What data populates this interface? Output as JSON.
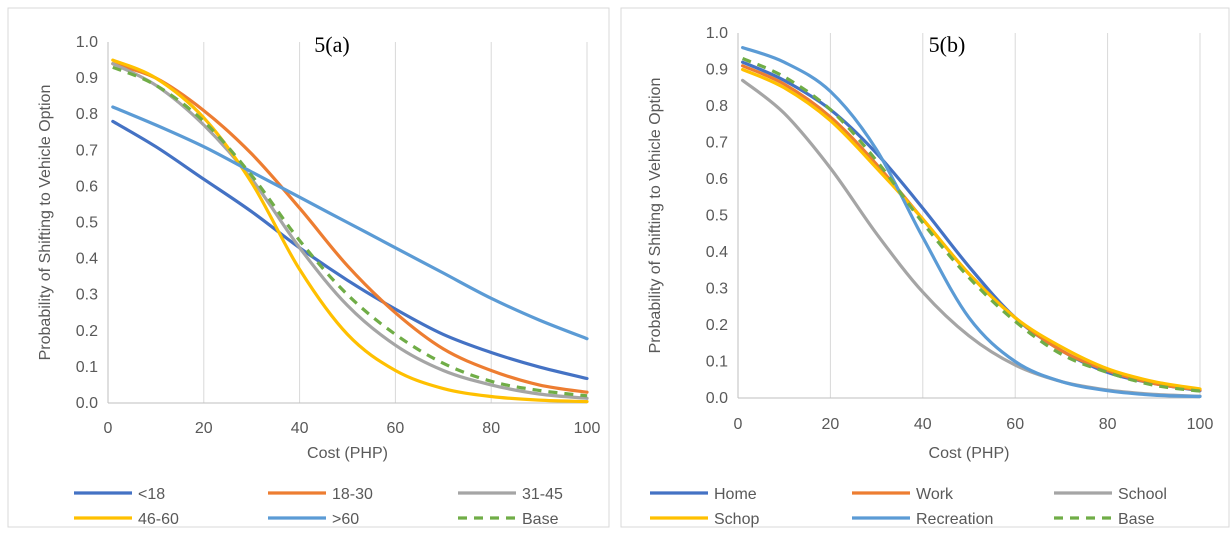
{
  "chart_data": [
    {
      "type": "line",
      "title": "5(a)",
      "xlabel": "Cost (PHP)",
      "ylabel": "Probability of Shifting to Vehicle Option",
      "xlim": [
        0,
        100
      ],
      "ylim": [
        0,
        1.0
      ],
      "xticks": [
        "0",
        "20",
        "40",
        "60",
        "80",
        "100"
      ],
      "yticks": [
        "0.0",
        "0.1",
        "0.2",
        "0.3",
        "0.4",
        "0.5",
        "0.6",
        "0.7",
        "0.8",
        "0.9",
        "1.0"
      ],
      "grid": "vertical",
      "legend": "bottom",
      "x": [
        1,
        10,
        20,
        30,
        40,
        50,
        60,
        70,
        80,
        90,
        100
      ],
      "series": [
        {
          "name": "<18",
          "color": "#4472C4",
          "dash": false,
          "values": [
            0.78,
            0.71,
            0.62,
            0.53,
            0.43,
            0.34,
            0.26,
            0.19,
            0.14,
            0.1,
            0.068
          ]
        },
        {
          "name": "18-30",
          "color": "#ED7D31",
          "dash": false,
          "values": [
            0.94,
            0.9,
            0.81,
            0.69,
            0.54,
            0.38,
            0.25,
            0.15,
            0.09,
            0.05,
            0.03
          ]
        },
        {
          "name": "31-45",
          "color": "#A5A5A5",
          "dash": false,
          "values": [
            0.94,
            0.88,
            0.77,
            0.62,
            0.43,
            0.27,
            0.16,
            0.09,
            0.05,
            0.025,
            0.013
          ]
        },
        {
          "name": "46-60",
          "color": "#FFC000",
          "dash": false,
          "values": [
            0.95,
            0.9,
            0.79,
            0.61,
            0.37,
            0.19,
            0.09,
            0.04,
            0.018,
            0.008,
            0.004
          ]
        },
        {
          "name": ">60",
          "color": "#5B9BD5",
          "dash": false,
          "values": [
            0.82,
            0.77,
            0.71,
            0.64,
            0.57,
            0.5,
            0.43,
            0.36,
            0.29,
            0.23,
            0.178
          ]
        },
        {
          "name": "Base",
          "color": "#70AD47",
          "dash": true,
          "values": [
            0.93,
            0.88,
            0.78,
            0.63,
            0.45,
            0.3,
            0.19,
            0.11,
            0.06,
            0.035,
            0.02
          ]
        }
      ]
    },
    {
      "type": "line",
      "title": "5(b)",
      "xlabel": "Cost (PHP)",
      "ylabel": "Probability of Shifting to Vehicle Option",
      "xlim": [
        0,
        100
      ],
      "ylim": [
        0,
        1.0
      ],
      "xticks": [
        "0",
        "20",
        "40",
        "60",
        "80",
        "100"
      ],
      "yticks": [
        "0.0",
        "0.1",
        "0.2",
        "0.3",
        "0.4",
        "0.5",
        "0.6",
        "0.7",
        "0.8",
        "0.9",
        "1.0"
      ],
      "grid": "vertical",
      "legend": "bottom",
      "x": [
        1,
        10,
        20,
        30,
        40,
        50,
        60,
        70,
        80,
        90,
        100
      ],
      "series": [
        {
          "name": "Home",
          "color": "#4472C4",
          "dash": false,
          "values": [
            0.92,
            0.87,
            0.79,
            0.67,
            0.52,
            0.36,
            0.22,
            0.13,
            0.07,
            0.04,
            0.02
          ]
        },
        {
          "name": "Work",
          "color": "#ED7D31",
          "dash": false,
          "values": [
            0.91,
            0.86,
            0.77,
            0.64,
            0.49,
            0.34,
            0.22,
            0.13,
            0.075,
            0.04,
            0.022
          ]
        },
        {
          "name": "School",
          "color": "#A5A5A5",
          "dash": false,
          "values": [
            0.87,
            0.78,
            0.63,
            0.45,
            0.29,
            0.17,
            0.09,
            0.045,
            0.022,
            0.01,
            0.005
          ]
        },
        {
          "name": "Schop",
          "color": "#FFC000",
          "dash": false,
          "values": [
            0.9,
            0.85,
            0.76,
            0.63,
            0.49,
            0.34,
            0.22,
            0.14,
            0.08,
            0.045,
            0.025
          ]
        },
        {
          "name": "Recreation",
          "color": "#5B9BD5",
          "dash": false,
          "values": [
            0.96,
            0.92,
            0.84,
            0.68,
            0.44,
            0.22,
            0.1,
            0.045,
            0.02,
            0.008,
            0.004
          ]
        },
        {
          "name": "Base",
          "color": "#70AD47",
          "dash": true,
          "values": [
            0.93,
            0.88,
            0.79,
            0.65,
            0.48,
            0.33,
            0.21,
            0.12,
            0.07,
            0.035,
            0.019
          ]
        }
      ]
    }
  ]
}
